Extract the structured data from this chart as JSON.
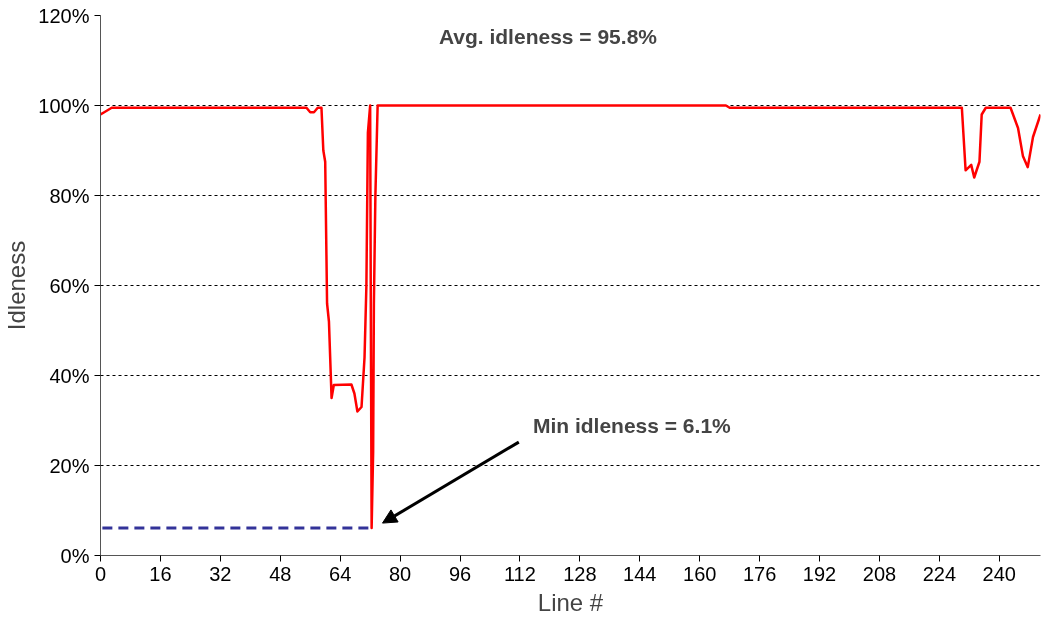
{
  "chart_data": {
    "type": "line",
    "xlabel": "Line #",
    "ylabel": "Idleness",
    "annotations": [
      "Avg. idleness = 95.8%",
      "Min idleness = 6.1%"
    ],
    "xlim": [
      0,
      251
    ],
    "xticks": [
      0,
      16,
      32,
      48,
      64,
      80,
      96,
      112,
      128,
      144,
      160,
      176,
      192,
      208,
      224,
      240
    ],
    "ylim": [
      0,
      120
    ],
    "yticks": [
      {
        "value": 0,
        "label": "0%"
      },
      {
        "value": 20,
        "label": "20%"
      },
      {
        "value": 40,
        "label": "40%"
      },
      {
        "value": 60,
        "label": "60%"
      },
      {
        "value": 80,
        "label": "80%"
      },
      {
        "value": 100,
        "label": "100%"
      },
      {
        "value": 120,
        "label": "120%"
      }
    ],
    "grid": "y",
    "marker": "none",
    "series": [
      {
        "color": "#ff0000",
        "line_style": "solid",
        "x": [
          0,
          1,
          3,
          55,
          56,
          57,
          58,
          59,
          59.5,
          60,
          60.5,
          61,
          61.7,
          62.3,
          67,
          67.8,
          68.6,
          69.7,
          70.5,
          71,
          71.4,
          72,
          72.2,
          72.4,
          72.8,
          73,
          73.4,
          74,
          100,
          167,
          168,
          230,
          231,
          232.5,
          233.3,
          234.7,
          235.3,
          236.4,
          243,
          245,
          246.3,
          247.6,
          249,
          251
        ],
        "values": [
          98,
          98.5,
          99.5,
          99.5,
          98.5,
          98.5,
          99.5,
          99.5,
          90,
          87.5,
          56,
          52,
          35,
          37.9,
          38,
          36,
          32,
          33,
          44,
          60,
          94,
          100,
          50,
          6.1,
          23,
          56,
          80,
          100,
          100,
          100,
          99.5,
          99.5,
          85.6,
          86.8,
          84,
          87.5,
          98,
          99.5,
          99.5,
          95,
          88.8,
          86.3,
          93,
          98
        ]
      },
      {
        "color": "#333399",
        "line_style": "dashed",
        "x": [
          0.5,
          72
        ],
        "values": [
          6.1,
          6.1
        ]
      }
    ]
  }
}
